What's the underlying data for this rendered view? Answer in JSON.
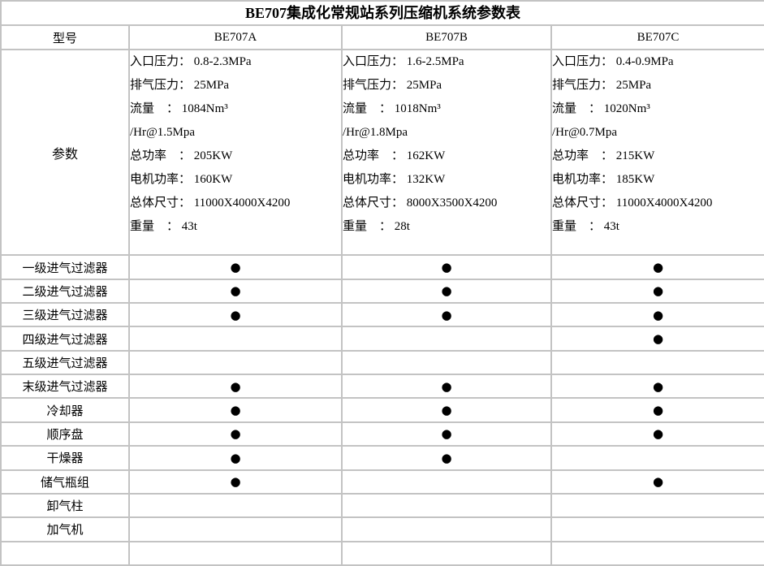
{
  "title": "BE707集成化常规站系列压缩机系统参数表",
  "header": {
    "model_col_label": "型号",
    "models": [
      "BE707A",
      "BE707B",
      "BE707C"
    ]
  },
  "params_row_label": "参数",
  "params": {
    "be707a": [
      "入口压力： 0.8-2.3MPa",
      "排气压力： 25MPa",
      "流量　： 1084Nm³",
      "/Hr@1.5Mpa",
      "总功率　： 205KW",
      "电机功率： 160KW",
      "总体尺寸： 11000X4000X4200",
      "重量　： 43t"
    ],
    "be707b": [
      "入口压力： 1.6-2.5MPa",
      "排气压力： 25MPa",
      "流量　： 1018Nm³",
      "/Hr@1.8Mpa",
      "总功率　： 162KW",
      "电机功率： 132KW",
      "总体尺寸： 8000X3500X4200",
      "重量　： 28t"
    ],
    "be707c": [
      "入口压力： 0.4-0.9MPa",
      "排气压力： 25MPa",
      "流量　： 1020Nm³",
      "/Hr@0.7Mpa",
      "总功率　： 215KW",
      "电机功率： 185KW",
      "总体尺寸： 11000X4000X4200",
      "重量　： 43t"
    ]
  },
  "bullet_glyph": "●",
  "equipment_rows": [
    {
      "label": "一级进气过滤器",
      "be707a": true,
      "be707b": true,
      "be707c": true
    },
    {
      "label": "二级进气过滤器",
      "be707a": true,
      "be707b": true,
      "be707c": true
    },
    {
      "label": "三级进气过滤器",
      "be707a": true,
      "be707b": true,
      "be707c": true
    },
    {
      "label": "四级进气过滤器",
      "be707a": false,
      "be707b": false,
      "be707c": true
    },
    {
      "label": "五级进气过滤器",
      "be707a": false,
      "be707b": false,
      "be707c": false
    },
    {
      "label": "末级进气过滤器",
      "be707a": true,
      "be707b": true,
      "be707c": true
    },
    {
      "label": "冷却器",
      "be707a": true,
      "be707b": true,
      "be707c": true
    },
    {
      "label": "顺序盘",
      "be707a": true,
      "be707b": true,
      "be707c": true
    },
    {
      "label": "干燥器",
      "be707a": true,
      "be707b": true,
      "be707c": false
    },
    {
      "label": "储气瓶组",
      "be707a": true,
      "be707b": false,
      "be707c": true
    },
    {
      "label": "卸气柱",
      "be707a": false,
      "be707b": false,
      "be707c": false
    },
    {
      "label": "加气机",
      "be707a": false,
      "be707b": false,
      "be707c": false
    },
    {
      "label": "",
      "be707a": false,
      "be707b": false,
      "be707c": false
    }
  ],
  "colors": {
    "border": "#c3c3c3",
    "text": "#000000",
    "background": "#ffffff"
  }
}
